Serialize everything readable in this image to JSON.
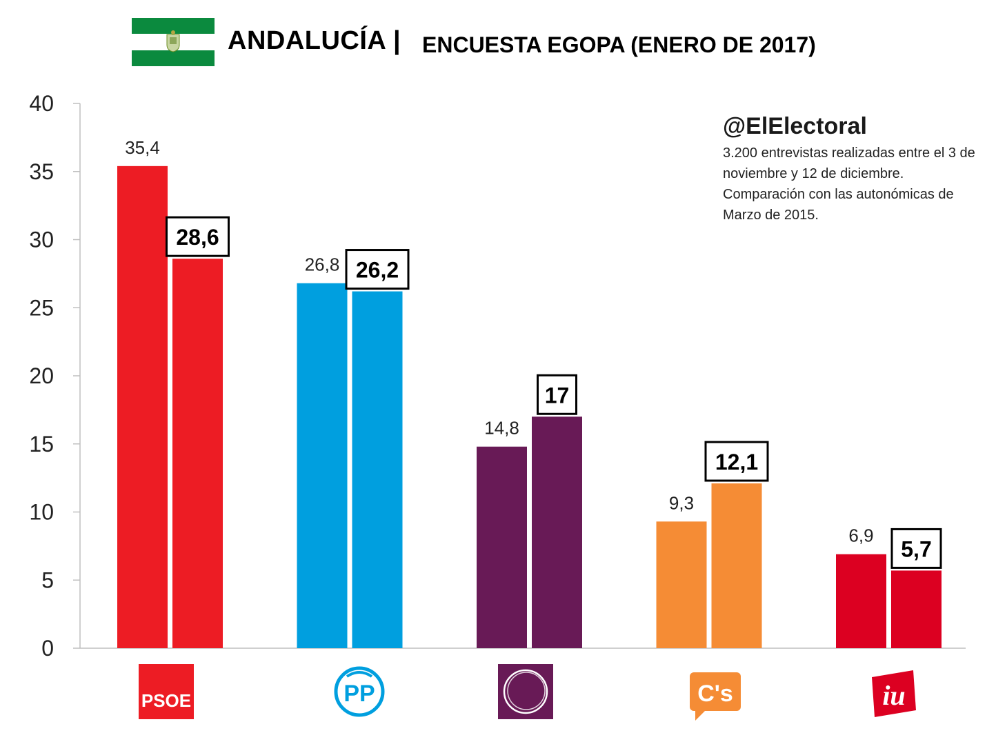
{
  "header": {
    "title": "ANDALUCÍA |",
    "subtitle": "ENCUESTA EGOPA (ENERO DE 2017)"
  },
  "source": {
    "handle": "@ElElectoral",
    "note": "3.200 entrevistas realizadas entre el 3 de noviembre y 12 de diciembre. Comparación con las autonómicas de Marzo de 2015."
  },
  "logos": {
    "psoe": "PSOE",
    "pp": "PP",
    "cs": "C's",
    "iu": "iu"
  },
  "chart_data": {
    "type": "bar",
    "categories": [
      "PSOE",
      "PP",
      "Podemos",
      "C's",
      "IU"
    ],
    "series": [
      {
        "values": [
          35.4,
          26.8,
          14.8,
          9.3,
          6.9
        ],
        "labels": [
          "35,4",
          "26,8",
          "14,8",
          "9,3",
          "6,9"
        ]
      },
      {
        "values": [
          28.6,
          26.2,
          17,
          12.1,
          5.7
        ],
        "labels": [
          "28,6",
          "26,2",
          "17",
          "12,1",
          "5,7"
        ]
      }
    ],
    "colors": [
      "#ED1C24",
      "#009FDF",
      "#681A56",
      "#F58C35",
      "#DC0021"
    ],
    "ylim": [
      0,
      40
    ],
    "yticks": [
      "0",
      "5",
      "10",
      "15",
      "20",
      "25",
      "30",
      "35",
      "40"
    ],
    "grid": false,
    "legend": "none"
  }
}
